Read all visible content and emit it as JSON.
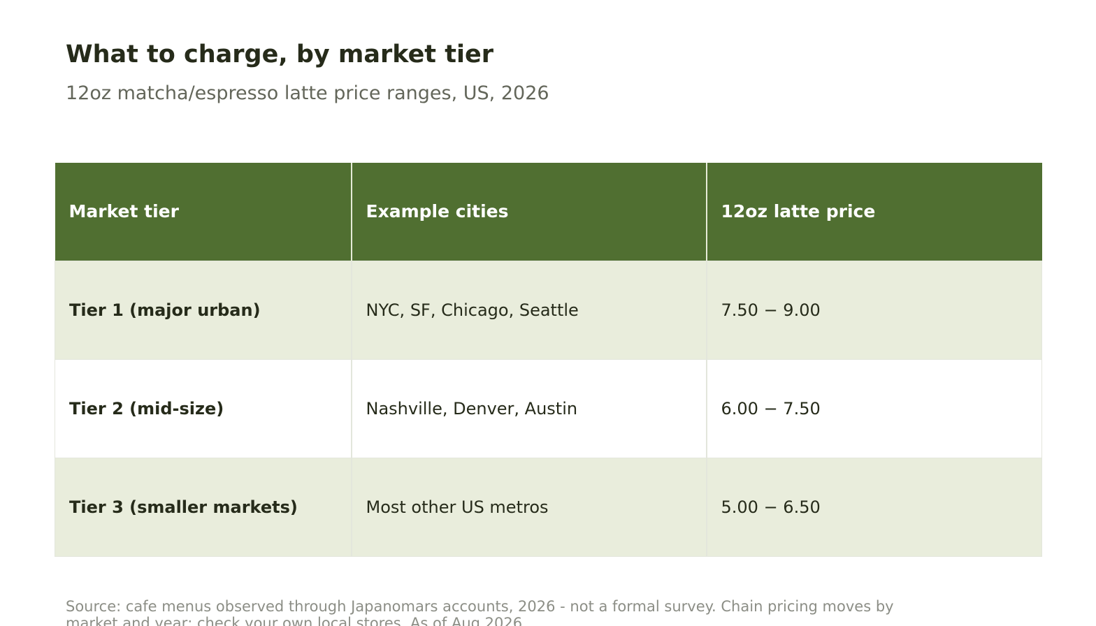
{
  "header": {
    "title": "What to charge, by market tier",
    "subtitle": "12oz matcha/espresso latte price ranges, US, 2026"
  },
  "chart_data": {
    "type": "table",
    "columns": [
      "Market tier",
      "Example cities",
      "12oz latte price"
    ],
    "rows": [
      {
        "tier": "Tier 1 (major urban)",
        "cities": "NYC, SF, Chicago, Seattle",
        "price": "7.50 − 9.00"
      },
      {
        "tier": "Tier 2 (mid-size)",
        "cities": "Nashville, Denver, Austin",
        "price": "6.00 − 7.50"
      },
      {
        "tier": "Tier 3 (smaller markets)",
        "cities": "Most other US metros",
        "price": "5.00 − 6.50"
      }
    ]
  },
  "footer": {
    "source_note": "Source: cafe menus observed through Japanomars accounts, 2026 - not a formal survey. Chain pricing moves by market and year; check your own local stores. As of Aug 2026"
  },
  "colors": {
    "header_bg": "#506f31",
    "shaded_row_bg": "#e9eddc",
    "text": "#262b1a"
  }
}
